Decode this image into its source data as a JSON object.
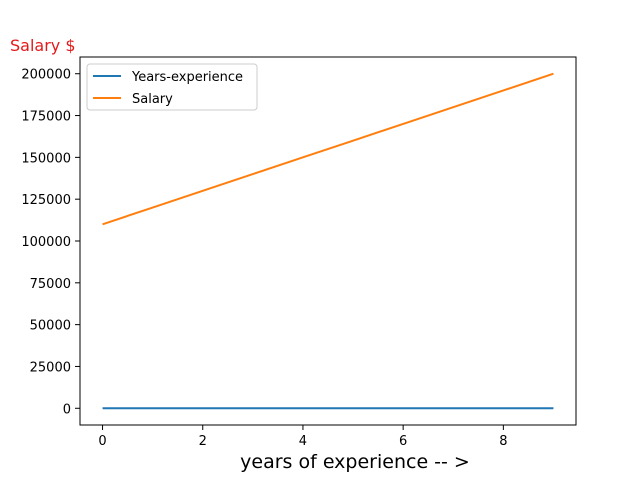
{
  "chart_data": {
    "type": "line",
    "x": [
      0,
      1,
      2,
      3,
      4,
      5,
      6,
      7,
      8,
      9
    ],
    "series": [
      {
        "name": "Years-experience",
        "color": "#1f77b4",
        "values": [
          0,
          1,
          2,
          3,
          4,
          5,
          6,
          7,
          8,
          9
        ]
      },
      {
        "name": "Salary",
        "color": "#ff7f0e",
        "values": [
          110000,
          120000,
          130000,
          140000,
          150000,
          160000,
          170000,
          180000,
          190000,
          200000
        ]
      }
    ],
    "xlabel": "years of experience -- >",
    "ylabel": "Salary $",
    "ylabel_color": "#e31a1c",
    "xlim": [
      -0.45,
      9.45
    ],
    "ylim": [
      -10000,
      210000
    ],
    "xticks": [
      0,
      2,
      4,
      6,
      8
    ],
    "yticks": [
      0,
      25000,
      50000,
      75000,
      100000,
      125000,
      150000,
      175000,
      200000
    ],
    "grid": false,
    "legend_position": "top-left"
  }
}
